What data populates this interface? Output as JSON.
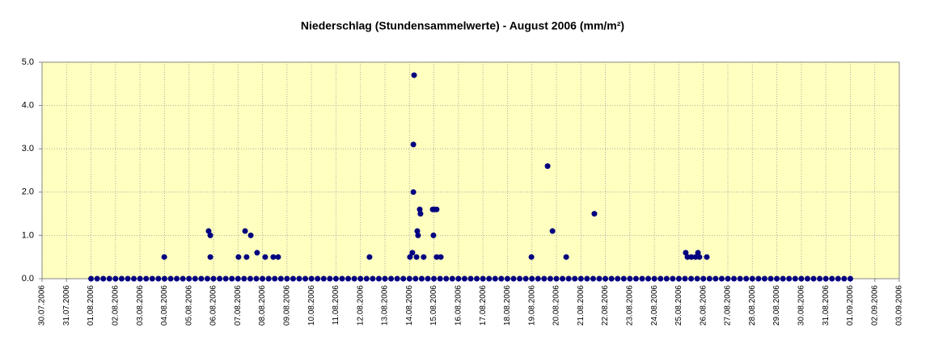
{
  "chart_data": {
    "type": "scatter",
    "title": "Niederschlag (Stundensammelwerte) - August 2006 (mm/m²)",
    "color": "#000080",
    "x": [
      38930,
      38930.25,
      38930.5,
      38930.75,
      38931,
      38931.25,
      38931.5,
      38931.75,
      38932,
      38932.25,
      38932.5,
      38932.75,
      38933,
      38933.25,
      38933.5,
      38933.75,
      38934,
      38934.25,
      38934.5,
      38934.75,
      38935,
      38935.25,
      38935.5,
      38935.75,
      38936,
      38936.25,
      38936.5,
      38936.75,
      38937,
      38937.25,
      38937.5,
      38937.75,
      38938,
      38938.25,
      38938.5,
      38938.75,
      38939,
      38939.25,
      38939.5,
      38939.75,
      38940,
      38940.25,
      38940.5,
      38940.75,
      38941,
      38941.25,
      38941.5,
      38941.75,
      38942,
      38942.25,
      38942.5,
      38942.75,
      38943,
      38943.25,
      38943.5,
      38943.75,
      38944,
      38944.25,
      38944.5,
      38944.75,
      38945,
      38945.25,
      38945.5,
      38945.75,
      38946,
      38946.25,
      38946.5,
      38946.75,
      38947,
      38947.25,
      38947.5,
      38947.75,
      38948,
      38948.25,
      38948.5,
      38948.75,
      38949,
      38949.25,
      38949.5,
      38949.75,
      38950,
      38950.25,
      38950.5,
      38950.75,
      38951,
      38951.25,
      38951.5,
      38951.75,
      38952,
      38952.25,
      38952.5,
      38952.75,
      38953,
      38953.25,
      38953.5,
      38953.75,
      38954,
      38954.25,
      38954.5,
      38954.75,
      38955,
      38955.25,
      38955.5,
      38955.75,
      38956,
      38956.25,
      38956.5,
      38956.75,
      38957,
      38957.25,
      38957.5,
      38957.75,
      38958,
      38958.25,
      38958.5,
      38958.75,
      38959,
      38959.25,
      38959.5,
      38959.75,
      38960,
      38960.25,
      38960.5,
      38960.75,
      38961,
      38932.99,
      38934.8,
      38934.87,
      38934.87,
      38936.02,
      38936.29,
      38936.35,
      38936.52,
      38936.78,
      38937.11,
      38937.44,
      38937.64,
      38941.37,
      38943.19,
      38943.16,
      38943.16,
      38943.12,
      38943.02,
      38943.29,
      38943.32,
      38943.35,
      38943.42,
      38943.45,
      38943.58,
      38943.95,
      38944.02,
      38944.11,
      38943.98,
      38944.11,
      38944.28,
      38947.98,
      38948.64,
      38948.84,
      38949.4,
      38950.55,
      38954.28,
      38954.35,
      38954.51,
      38954.68,
      38954.78,
      38954.84,
      38955.14
    ],
    "values": [
      0,
      0,
      0,
      0,
      0,
      0,
      0,
      0,
      0,
      0,
      0,
      0,
      0,
      0,
      0,
      0,
      0,
      0,
      0,
      0,
      0,
      0,
      0,
      0,
      0,
      0,
      0,
      0,
      0,
      0,
      0,
      0,
      0,
      0,
      0,
      0,
      0,
      0,
      0,
      0,
      0,
      0,
      0,
      0,
      0,
      0,
      0,
      0,
      0,
      0,
      0,
      0,
      0,
      0,
      0,
      0,
      0,
      0,
      0,
      0,
      0,
      0,
      0,
      0,
      0,
      0,
      0,
      0,
      0,
      0,
      0,
      0,
      0,
      0,
      0,
      0,
      0,
      0,
      0,
      0,
      0,
      0,
      0,
      0,
      0,
      0,
      0,
      0,
      0,
      0,
      0,
      0,
      0,
      0,
      0,
      0,
      0,
      0,
      0,
      0,
      0,
      0,
      0,
      0,
      0,
      0,
      0,
      0,
      0,
      0,
      0,
      0,
      0,
      0,
      0,
      0,
      0,
      0,
      0,
      0,
      0,
      0,
      0,
      0,
      0,
      0.5,
      1.1,
      1.0,
      0.5,
      0.5,
      1.1,
      0.5,
      1.0,
      0.6,
      0.5,
      0.5,
      0.5,
      0.5,
      4.7,
      3.1,
      2.0,
      0.6,
      0.5,
      0.5,
      1.1,
      1.0,
      1.6,
      1.5,
      0.5,
      1.6,
      1.6,
      1.6,
      1.0,
      0.5,
      0.5,
      0.5,
      2.6,
      1.1,
      0.5,
      1.5,
      0.6,
      0.5,
      0.5,
      0.5,
      0.6,
      0.5,
      0.5
    ],
    "xlim": [
      38928,
      38963
    ],
    "xticks": [
      {
        "value": 38928,
        "label": "30.07.2006"
      },
      {
        "value": 38929,
        "label": "31.07.2006"
      },
      {
        "value": 38930,
        "label": "01.08.2006"
      },
      {
        "value": 38931,
        "label": "02.08.2006"
      },
      {
        "value": 38932,
        "label": "03.08.2006"
      },
      {
        "value": 38933,
        "label": "04.08.2006"
      },
      {
        "value": 38934,
        "label": "05.08.2006"
      },
      {
        "value": 38935,
        "label": "06.08.2006"
      },
      {
        "value": 38936,
        "label": "07.08.2006"
      },
      {
        "value": 38937,
        "label": "08.08.2006"
      },
      {
        "value": 38938,
        "label": "09.08.2006"
      },
      {
        "value": 38939,
        "label": "10.08.2006"
      },
      {
        "value": 38940,
        "label": "11.08.2006"
      },
      {
        "value": 38941,
        "label": "12.08.2006"
      },
      {
        "value": 38942,
        "label": "13.08.2006"
      },
      {
        "value": 38943,
        "label": "14.08.2006"
      },
      {
        "value": 38944,
        "label": "15.08.2006"
      },
      {
        "value": 38945,
        "label": "16.08.2006"
      },
      {
        "value": 38946,
        "label": "17.08.2006"
      },
      {
        "value": 38947,
        "label": "18.08.2006"
      },
      {
        "value": 38948,
        "label": "19.08.2006"
      },
      {
        "value": 38949,
        "label": "20.08.2006"
      },
      {
        "value": 38950,
        "label": "21.08.2006"
      },
      {
        "value": 38951,
        "label": "22.08.2006"
      },
      {
        "value": 38952,
        "label": "23.08.2006"
      },
      {
        "value": 38953,
        "label": "24.08.2006"
      },
      {
        "value": 38954,
        "label": "25.08.2006"
      },
      {
        "value": 38955,
        "label": "26.08.2006"
      },
      {
        "value": 38956,
        "label": "27.08.2006"
      },
      {
        "value": 38957,
        "label": "28.08.2006"
      },
      {
        "value": 38958,
        "label": "29.08.2006"
      },
      {
        "value": 38959,
        "label": "30.08.2006"
      },
      {
        "value": 38960,
        "label": "31.08.2006"
      },
      {
        "value": 38961,
        "label": "01.09.2006"
      },
      {
        "value": 38962,
        "label": "02.09.2006"
      },
      {
        "value": 38963,
        "label": "03.09.2006"
      }
    ],
    "ylim": [
      0,
      5
    ],
    "yticks": [
      {
        "value": 0,
        "label": "0.0"
      },
      {
        "value": 1,
        "label": "1.0"
      },
      {
        "value": 2,
        "label": "2.0"
      },
      {
        "value": 3,
        "label": "3.0"
      },
      {
        "value": 4,
        "label": "4.0"
      },
      {
        "value": 5,
        "label": "5.0"
      }
    ],
    "grid": true
  }
}
